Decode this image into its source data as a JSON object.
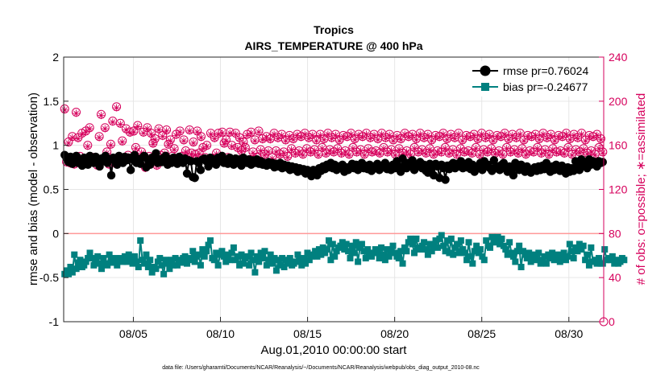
{
  "chart_data": {
    "type": "line",
    "title": "Tropics",
    "subtitle": "AIRS_TEMPERATURE @ 400 hPa",
    "xlabel": "Aug.01,2010 00:00:00 start",
    "ylabel": "rmse and bias (model - observation)",
    "ylabel_right": "# of obs: o=possible; ∗=assimilated",
    "footnote": "data file: /Users/gharamti/Documents/NCAR/Reanalysis/~/Documents/NCAR/Reanalysis/webpub/obs_diag_output_2010-08.nc",
    "xlim": [
      1,
      32
    ],
    "ylim": [
      -1,
      2
    ],
    "ylim_right": [
      0,
      240
    ],
    "x_ticks": [
      5,
      10,
      15,
      20,
      25,
      30
    ],
    "x_tick_labels": [
      "08/05",
      "08/10",
      "08/15",
      "08/20",
      "08/25",
      "08/30"
    ],
    "y_ticks": [
      -1,
      -0.5,
      0,
      0.5,
      1,
      1.5,
      2
    ],
    "y_tick_labels": [
      "-1",
      "-0.5",
      "0",
      "0.5",
      "1",
      "1.5",
      "2"
    ],
    "y_ticks_right": [
      0,
      40,
      80,
      120,
      160,
      200,
      240
    ],
    "y_tick_labels_right": [
      "0",
      "40",
      "80",
      "120",
      "160",
      "200",
      "240"
    ],
    "grid": true,
    "legend_position": "top-right",
    "colors": {
      "rmse": "#000000",
      "bias": "#00807f",
      "obs": "#d6005c",
      "zero_line": "#ff9999",
      "grid": "#e6e6e6"
    },
    "series": [
      {
        "name": "rmse",
        "legend": "rmse pr=0.76024",
        "values": [
          0.89,
          0.85,
          0.81,
          0.87,
          0.79,
          0.86,
          0.88,
          0.8,
          0.84,
          0.77,
          0.86,
          0.82,
          0.78,
          0.88,
          0.84,
          0.8,
          0.87,
          0.83,
          0.76,
          0.85,
          0.82,
          0.88,
          0.8,
          0.84,
          0.66,
          0.86,
          0.82,
          0.78,
          0.88,
          0.84,
          0.8,
          0.87,
          0.83,
          0.86,
          0.72,
          0.84,
          0.89,
          0.8,
          0.84,
          0.79,
          0.86,
          0.88,
          0.75,
          0.84,
          0.78,
          0.86,
          0.82,
          0.91,
          0.8,
          0.84,
          0.81,
          0.86,
          0.88,
          0.78,
          0.84,
          0.8,
          0.86,
          0.83,
          0.79,
          0.87,
          0.84,
          0.8,
          0.85,
          0.68,
          0.83,
          0.82,
          0.64,
          0.63,
          0.82,
          0.8,
          0.72,
          0.84,
          0.85,
          0.82,
          0.76,
          0.86,
          0.8,
          0.84,
          0.78,
          0.86,
          0.82,
          0.88,
          0.8,
          0.84,
          0.79,
          0.86,
          0.82,
          0.78,
          0.85,
          0.8,
          0.84,
          0.77,
          0.86,
          0.82,
          0.8,
          0.84,
          0.78,
          0.83,
          0.8,
          0.84,
          0.79,
          0.82,
          0.78,
          0.8,
          0.77,
          0.81,
          0.78,
          0.8,
          0.75,
          0.79,
          0.76,
          0.8,
          0.74,
          0.78,
          0.75,
          0.77,
          0.72,
          0.76,
          0.73,
          0.75,
          0.7,
          0.74,
          0.71,
          0.73,
          0.68,
          0.72,
          0.7,
          0.65,
          0.72,
          0.7,
          0.66,
          0.74,
          0.71,
          0.76,
          0.73,
          0.78,
          0.75,
          0.8,
          0.74,
          0.78,
          0.72,
          0.76,
          0.74,
          0.78,
          0.7,
          0.75,
          0.72,
          0.76,
          0.79,
          0.74,
          0.78,
          0.72,
          0.76,
          0.8,
          0.74,
          0.77,
          0.73,
          0.78,
          0.71,
          0.76,
          0.74,
          0.79,
          0.72,
          0.77,
          0.75,
          0.8,
          0.73,
          0.76,
          0.72,
          0.78,
          0.74,
          0.82,
          0.76,
          0.7,
          0.85,
          0.78,
          0.74,
          0.8,
          0.76,
          0.83,
          0.72,
          0.78,
          0.76,
          0.81,
          0.74,
          0.78,
          0.71,
          0.69,
          0.79,
          0.74,
          0.66,
          0.79,
          0.76,
          0.63,
          0.78,
          0.74,
          0.61,
          0.77,
          0.73,
          0.78,
          0.8,
          0.74,
          0.79,
          0.76,
          0.82,
          0.74,
          0.79,
          0.75,
          0.81,
          0.73,
          0.78,
          0.7,
          0.76,
          0.74,
          0.8,
          0.72,
          0.82,
          0.76,
          0.78,
          0.74,
          0.71,
          0.83,
          0.74,
          0.76,
          0.72,
          0.78,
          0.8,
          0.74,
          0.7,
          0.76,
          0.72,
          0.66,
          0.8,
          0.76,
          0.72,
          0.78,
          0.74,
          0.7,
          0.76,
          0.73,
          0.69,
          0.72,
          0.75,
          0.71,
          0.76,
          0.72,
          0.77,
          0.73,
          0.8,
          0.74,
          0.7,
          0.76,
          0.72,
          0.78,
          0.74,
          0.71,
          0.77,
          0.73,
          0.68,
          0.75,
          0.7,
          0.74,
          0.71,
          0.82,
          0.76,
          0.72,
          0.84,
          0.78,
          0.8,
          0.74,
          0.84,
          0.78,
          0.82,
          0.8,
          0.76,
          0.82,
          0.8,
          0.81
        ]
      },
      {
        "name": "bias",
        "legend": "bias pr=-0.24677",
        "values": [
          -0.46,
          -0.42,
          -0.46,
          -0.38,
          -0.44,
          -0.24,
          -0.4,
          -0.33,
          -0.3,
          -0.38,
          -0.36,
          -0.32,
          -0.28,
          -0.22,
          -0.28,
          -0.36,
          -0.3,
          -0.26,
          -0.34,
          -0.4,
          -0.28,
          -0.34,
          -0.36,
          -0.24,
          -0.3,
          -0.33,
          -0.28,
          -0.36,
          -0.3,
          -0.28,
          -0.32,
          -0.26,
          -0.32,
          -0.24,
          -0.3,
          -0.34,
          -0.26,
          -0.32,
          -0.38,
          -0.08,
          -0.3,
          -0.34,
          -0.24,
          -0.38,
          -0.3,
          -0.44,
          -0.38,
          -0.4,
          -0.32,
          -0.28,
          -0.36,
          -0.46,
          -0.3,
          -0.34,
          -0.4,
          -0.3,
          -0.36,
          -0.28,
          -0.36,
          -0.3,
          -0.33,
          -0.28,
          -0.26,
          -0.34,
          -0.3,
          -0.28,
          -0.2,
          -0.32,
          -0.26,
          -0.24,
          -0.36,
          -0.18,
          -0.26,
          -0.2,
          -0.13,
          -0.08,
          -0.28,
          -0.3,
          -0.22,
          -0.36,
          -0.24,
          -0.2,
          -0.26,
          -0.32,
          -0.24,
          -0.3,
          -0.22,
          -0.16,
          -0.3,
          -0.26,
          -0.36,
          -0.24,
          -0.34,
          -0.28,
          -0.26,
          -0.36,
          -0.22,
          -0.3,
          -0.44,
          -0.26,
          -0.32,
          -0.22,
          -0.28,
          -0.2,
          -0.36,
          -0.3,
          -0.24,
          -0.34,
          -0.28,
          -0.42,
          -0.3,
          -0.36,
          -0.28,
          -0.38,
          -0.3,
          -0.34,
          -0.28,
          -0.36,
          -0.34,
          -0.32,
          -0.24,
          -0.3,
          -0.36,
          -0.28,
          -0.34,
          -0.22,
          -0.3,
          -0.26,
          -0.24,
          -0.2,
          -0.26,
          -0.18,
          -0.24,
          -0.16,
          -0.22,
          -0.18,
          -0.08,
          -0.3,
          -0.12,
          -0.26,
          -0.2,
          -0.16,
          -0.14,
          -0.1,
          -0.18,
          -0.12,
          -0.2,
          -0.28,
          -0.14,
          -0.22,
          -0.1,
          -0.32,
          -0.16,
          -0.12,
          -0.2,
          -0.28,
          -0.18,
          -0.22,
          -0.26,
          -0.22,
          -0.18,
          -0.22,
          -0.28,
          -0.16,
          -0.24,
          -0.3,
          -0.18,
          -0.26,
          -0.2,
          -0.14,
          -0.22,
          -0.26,
          -0.28,
          -0.2,
          -0.34,
          -0.16,
          -0.2,
          -0.1,
          -0.06,
          -0.12,
          -0.22,
          -0.06,
          -0.16,
          -0.18,
          -0.14,
          -0.1,
          -0.18,
          -0.24,
          -0.12,
          -0.2,
          -0.14,
          -0.08,
          -0.16,
          -0.06,
          -0.02,
          -0.14,
          -0.2,
          -0.08,
          -0.22,
          -0.06,
          -0.24,
          -0.16,
          -0.12,
          -0.22,
          -0.08,
          -0.18,
          -0.22,
          -0.3,
          -0.1,
          -0.26,
          -0.34,
          -0.2,
          -0.14,
          -0.22,
          -0.18,
          -0.26,
          -0.3,
          -0.08,
          -0.14,
          -0.16,
          -0.04,
          -0.1,
          -0.08,
          -0.04,
          -0.12,
          -0.06,
          -0.14,
          -0.18,
          -0.24,
          -0.1,
          -0.22,
          -0.26,
          -0.32,
          -0.2,
          -0.14,
          -0.38,
          -0.2,
          -0.24,
          -0.28,
          -0.22,
          -0.32,
          -0.26,
          -0.24,
          -0.3,
          -0.22,
          -0.34,
          -0.3,
          -0.26,
          -0.34,
          -0.24,
          -0.28,
          -0.22,
          -0.3,
          -0.26,
          -0.24,
          -0.32,
          -0.26,
          -0.22,
          -0.3,
          -0.26,
          -0.12,
          -0.2,
          -0.28,
          -0.16,
          -0.2,
          -0.12,
          -0.18,
          -0.14,
          -0.3,
          -0.24,
          -0.36,
          -0.16,
          -0.32,
          -0.3,
          -0.34,
          -0.28,
          -0.34,
          -0.34,
          -0.18,
          -0.3,
          -0.28,
          -0.3,
          -0.26,
          -0.34,
          -0.3,
          -0.34,
          -0.32,
          -0.28,
          -0.3
        ]
      }
    ],
    "obs_possible": [
      193,
      145,
      163,
      144,
      168,
      143,
      190,
      167,
      150,
      171,
      148,
      173,
      160,
      176,
      147,
      149,
      146,
      142,
      168,
      188,
      146,
      176,
      154,
      143,
      161,
      182,
      144,
      195,
      146,
      180,
      164,
      146,
      175,
      151,
      172,
      148,
      173,
      158,
      178,
      148,
      154,
      172,
      140,
      176,
      150,
      171,
      162,
      166,
      142,
      175,
      151,
      169,
      153,
      174,
      161,
      165,
      150,
      157,
      170,
      148,
      173,
      150,
      165,
      155,
      149,
      174,
      153,
      163,
      152,
      173,
      153,
      168,
      158,
      149,
      160,
      144,
      171,
      148,
      167,
      153,
      171,
      148,
      172,
      162,
      165,
      149,
      172,
      160,
      144,
      171,
      158,
      167,
      155,
      163,
      158,
      170,
      147,
      172,
      154,
      165,
      149,
      173,
      156,
      166,
      152,
      168,
      155,
      166,
      149,
      171,
      155,
      167,
      152,
      170,
      154,
      165,
      150,
      169,
      157,
      166,
      153,
      170,
      155,
      168,
      152,
      171,
      157,
      167,
      154,
      170,
      156,
      165,
      152,
      170,
      158,
      166,
      153,
      171,
      156,
      167,
      154,
      170,
      157,
      165,
      153,
      169,
      155,
      168,
      152,
      171,
      158,
      166,
      154,
      170,
      156,
      168,
      152,
      171,
      157,
      167,
      154,
      170,
      155,
      166,
      153,
      171,
      158,
      167,
      154,
      170,
      156,
      165,
      152,
      169,
      157,
      166,
      153,
      171,
      155,
      168,
      152,
      170,
      158,
      166,
      154,
      171,
      156,
      167,
      153,
      170,
      157,
      165,
      152,
      169,
      155,
      168,
      154,
      171,
      158,
      166,
      153,
      170,
      156,
      167,
      152,
      171,
      157,
      165,
      154,
      169,
      155,
      168,
      153,
      170,
      158,
      166,
      152,
      171,
      156,
      167,
      154,
      170,
      157,
      165,
      153,
      169,
      155,
      168,
      152,
      171,
      158,
      166,
      154,
      170,
      156,
      167,
      153,
      171,
      157,
      165,
      152,
      169,
      155,
      168,
      154,
      170,
      158,
      166,
      153,
      171,
      156,
      167,
      152,
      170,
      157,
      165,
      154,
      169,
      155,
      168,
      153,
      171,
      158,
      166,
      152,
      170,
      156,
      167,
      154,
      171,
      157,
      165,
      153,
      169,
      155,
      168,
      152,
      170,
      158,
      166,
      154
    ],
    "obs_assimilated": [
      192,
      144,
      162,
      143,
      167,
      142,
      189,
      166,
      149,
      170,
      147,
      172,
      159,
      175,
      146,
      148,
      145,
      141,
      167,
      187,
      145,
      175,
      153,
      142,
      160,
      181,
      143,
      194,
      145,
      179,
      163,
      145,
      174,
      150,
      171,
      147,
      172,
      157,
      177,
      147,
      153,
      171,
      139,
      175,
      149,
      170,
      161,
      165,
      141,
      174,
      150,
      168,
      152,
      173,
      160,
      164,
      149,
      156,
      169,
      147,
      172,
      149,
      164,
      154,
      148,
      173,
      152,
      162,
      151,
      172,
      152,
      167,
      157,
      148,
      159,
      143,
      170,
      147,
      166,
      152,
      170,
      147,
      171,
      161,
      164,
      148,
      171,
      159,
      143,
      170,
      157,
      166,
      154,
      162,
      157,
      169,
      146,
      171,
      153,
      164,
      148,
      172,
      155,
      165,
      151,
      167,
      154,
      165,
      148,
      170,
      154,
      166,
      151,
      169,
      153,
      164,
      149,
      168,
      156,
      165,
      152,
      169,
      154,
      167,
      151,
      170,
      156,
      166,
      153,
      169,
      155,
      164,
      151,
      169,
      157,
      165,
      152,
      170,
      155,
      166,
      153,
      169,
      156,
      164,
      152,
      168,
      154,
      167,
      151,
      170,
      157,
      165,
      153,
      169,
      155,
      167,
      151,
      170,
      156,
      166,
      153,
      169,
      154,
      165,
      152,
      170,
      157,
      166,
      153,
      169,
      155,
      164,
      151,
      168,
      156,
      165,
      152,
      170,
      154,
      167,
      151,
      169,
      157,
      165,
      153,
      170,
      155,
      166,
      152,
      169,
      156,
      164,
      151,
      168,
      154,
      167,
      153,
      170,
      157,
      165,
      152,
      169,
      155,
      166,
      151,
      170,
      156,
      164,
      153,
      168,
      154,
      167,
      152,
      169,
      157,
      165,
      151,
      170,
      155,
      166,
      153,
      169,
      156,
      164,
      152,
      168,
      154,
      167,
      151,
      170,
      157,
      165,
      153,
      169,
      155,
      166,
      152,
      170,
      156,
      164,
      151,
      168,
      154,
      167,
      153,
      169,
      157,
      165,
      152,
      170,
      155,
      166,
      151,
      169,
      156,
      164,
      153,
      168,
      154,
      167,
      152,
      170,
      157,
      165,
      151,
      169,
      155,
      166,
      153,
      170,
      156,
      164,
      152,
      168,
      154,
      167,
      151,
      169,
      157,
      165,
      153
    ]
  }
}
